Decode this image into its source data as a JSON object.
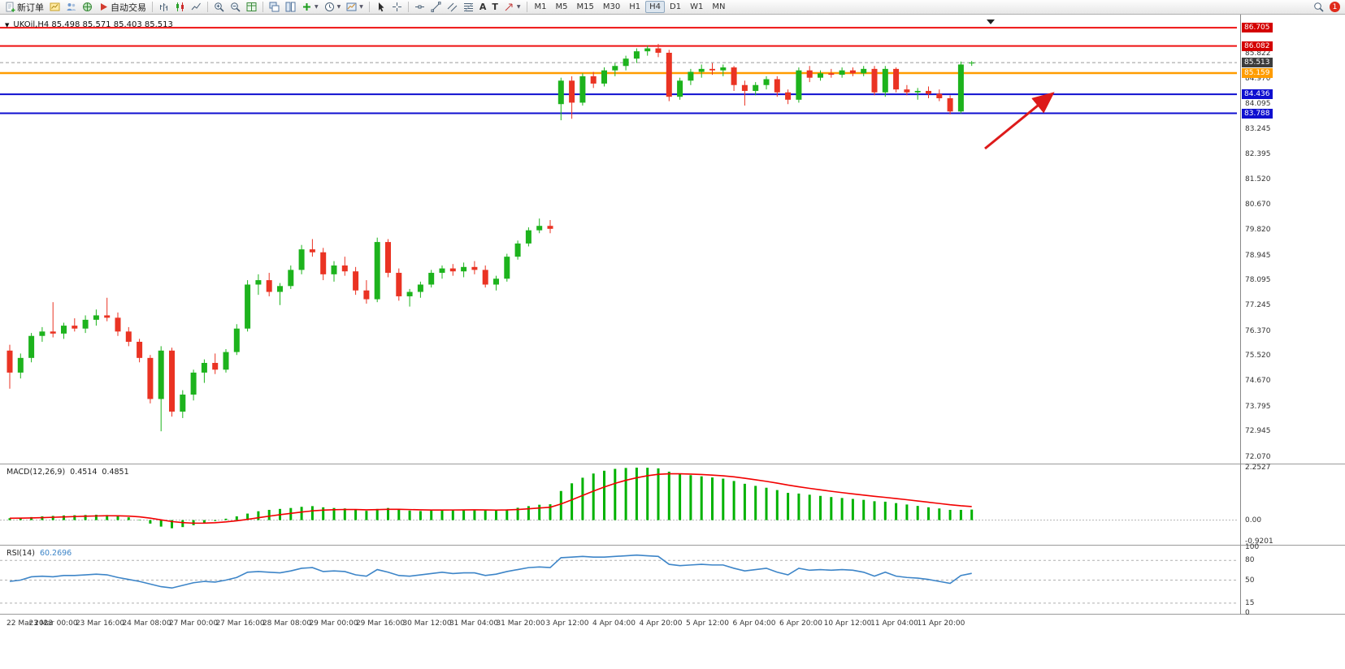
{
  "toolbar": {
    "new_order": "新订单",
    "autotrading": "自动交易",
    "text_tool": "A",
    "label_tool": "T",
    "timeframes": [
      "M1",
      "M5",
      "M15",
      "M30",
      "H1",
      "H4",
      "D1",
      "W1",
      "MN"
    ],
    "active_timeframe": "H4",
    "notification_count": "1"
  },
  "chart": {
    "title": "UKOil,H4 85.498 85.571 85.403 85.513",
    "symbol": "UKOil",
    "period": "H4",
    "ohlc": {
      "open": "85.498",
      "high": "85.571",
      "low": "85.403",
      "close": "85.513"
    }
  },
  "chart_data": {
    "type": "candlestick",
    "symbol": "UKOil",
    "timeframe": "H4",
    "colors": {
      "up": "#1db31d",
      "down": "#ea3323"
    },
    "price_axis_ticks": [
      85.822,
      84.97,
      84.095,
      83.245,
      82.395,
      81.52,
      80.67,
      79.82,
      78.945,
      78.095,
      77.245,
      76.37,
      75.52,
      74.67,
      73.795,
      72.945,
      72.07
    ],
    "price_lines": [
      {
        "price": 86.705,
        "color": "#ee1111",
        "width": 2,
        "tag": true,
        "tag_bg": "#d40000"
      },
      {
        "price": 86.082,
        "color": "#ee1111",
        "width": 2,
        "tag": true,
        "tag_bg": "#d40000"
      },
      {
        "price": 85.513,
        "color": "#9a9a9a",
        "width": 1,
        "dash": "4 3",
        "tag": true,
        "tag_bg": "#3c3c3c",
        "role": "bid"
      },
      {
        "price": 85.159,
        "color": "#ff9c00",
        "width": 2.5,
        "tag": true,
        "tag_bg": "#ff9c00"
      },
      {
        "price": 84.436,
        "color": "#0f0fd0",
        "width": 2,
        "tag": true,
        "tag_bg": "#0f0fd0"
      },
      {
        "price": 83.788,
        "color": "#0f0fd0",
        "width": 2,
        "tag": true,
        "tag_bg": "#0f0fd0"
      }
    ],
    "candles": [
      [
        75.7,
        75.9,
        74.4,
        74.95
      ],
      [
        74.95,
        75.6,
        74.75,
        75.45
      ],
      [
        75.45,
        76.3,
        75.3,
        76.2
      ],
      [
        76.2,
        76.5,
        76.0,
        76.35
      ],
      [
        76.35,
        77.35,
        76.15,
        76.28
      ],
      [
        76.28,
        76.65,
        76.1,
        76.55
      ],
      [
        76.55,
        76.8,
        76.35,
        76.45
      ],
      [
        76.45,
        76.9,
        76.3,
        76.75
      ],
      [
        76.75,
        77.1,
        76.55,
        76.9
      ],
      [
        76.9,
        77.5,
        76.7,
        76.82
      ],
      [
        76.82,
        77.0,
        76.2,
        76.35
      ],
      [
        76.35,
        76.5,
        75.85,
        76.0
      ],
      [
        76.0,
        76.1,
        75.3,
        75.45
      ],
      [
        75.45,
        75.55,
        73.9,
        74.05
      ],
      [
        74.05,
        75.85,
        72.95,
        75.7
      ],
      [
        75.7,
        75.8,
        73.45,
        73.62
      ],
      [
        73.62,
        74.35,
        73.4,
        74.2
      ],
      [
        74.2,
        75.05,
        74.0,
        74.95
      ],
      [
        74.95,
        75.4,
        74.6,
        75.28
      ],
      [
        75.28,
        75.6,
        74.9,
        75.05
      ],
      [
        75.05,
        75.75,
        74.95,
        75.65
      ],
      [
        75.65,
        76.6,
        75.55,
        76.45
      ],
      [
        76.45,
        78.1,
        76.35,
        77.95
      ],
      [
        77.95,
        78.3,
        77.6,
        78.1
      ],
      [
        78.1,
        78.35,
        77.55,
        77.7
      ],
      [
        77.7,
        78.0,
        77.25,
        77.9
      ],
      [
        77.9,
        78.6,
        77.8,
        78.45
      ],
      [
        78.45,
        79.3,
        78.3,
        79.15
      ],
      [
        79.15,
        79.5,
        78.9,
        79.05
      ],
      [
        79.05,
        79.2,
        78.1,
        78.3
      ],
      [
        78.3,
        78.75,
        78.05,
        78.6
      ],
      [
        78.6,
        78.9,
        78.25,
        78.4
      ],
      [
        78.4,
        78.55,
        77.6,
        77.75
      ],
      [
        77.75,
        78.1,
        77.3,
        77.45
      ],
      [
        77.45,
        79.55,
        77.35,
        79.4
      ],
      [
        79.4,
        79.5,
        78.2,
        78.35
      ],
      [
        78.35,
        78.5,
        77.4,
        77.55
      ],
      [
        77.55,
        77.8,
        77.2,
        77.7
      ],
      [
        77.7,
        78.05,
        77.5,
        77.95
      ],
      [
        77.95,
        78.45,
        77.85,
        78.35
      ],
      [
        78.35,
        78.6,
        78.15,
        78.5
      ],
      [
        78.5,
        78.65,
        78.25,
        78.4
      ],
      [
        78.4,
        78.7,
        78.2,
        78.55
      ],
      [
        78.55,
        78.75,
        78.3,
        78.45
      ],
      [
        78.45,
        78.6,
        77.85,
        77.95
      ],
      [
        77.95,
        78.25,
        77.75,
        78.15
      ],
      [
        78.15,
        79.0,
        78.05,
        78.9
      ],
      [
        78.9,
        79.45,
        78.8,
        79.35
      ],
      [
        79.35,
        79.9,
        79.25,
        79.8
      ],
      [
        79.8,
        80.2,
        79.7,
        79.95
      ],
      [
        79.95,
        80.15,
        79.7,
        79.85
      ],
      [
        84.1,
        85.0,
        83.55,
        84.9
      ],
      [
        84.9,
        85.05,
        83.6,
        84.15
      ],
      [
        84.15,
        85.15,
        84.05,
        85.05
      ],
      [
        85.05,
        85.2,
        84.65,
        84.8
      ],
      [
        84.8,
        85.35,
        84.7,
        85.25
      ],
      [
        85.25,
        85.5,
        85.05,
        85.4
      ],
      [
        85.4,
        85.75,
        85.25,
        85.65
      ],
      [
        85.65,
        86.0,
        85.5,
        85.9
      ],
      [
        85.9,
        86.1,
        85.75,
        86.0
      ],
      [
        86.0,
        86.15,
        85.7,
        85.85
      ],
      [
        85.85,
        85.95,
        84.2,
        84.35
      ],
      [
        84.35,
        85.0,
        84.25,
        84.9
      ],
      [
        84.9,
        85.3,
        84.75,
        85.2
      ],
      [
        85.2,
        85.45,
        85.0,
        85.3
      ],
      [
        85.3,
        85.5,
        85.1,
        85.25
      ],
      [
        85.25,
        85.45,
        85.05,
        85.35
      ],
      [
        85.35,
        85.4,
        84.55,
        84.75
      ],
      [
        84.75,
        84.9,
        84.05,
        84.55
      ],
      [
        84.55,
        84.85,
        84.4,
        84.75
      ],
      [
        84.75,
        85.05,
        84.6,
        84.95
      ],
      [
        84.95,
        85.05,
        84.35,
        84.5
      ],
      [
        84.5,
        84.6,
        84.1,
        84.25
      ],
      [
        84.25,
        85.35,
        84.15,
        85.25
      ],
      [
        85.25,
        85.4,
        84.85,
        85.0
      ],
      [
        85.0,
        85.25,
        84.9,
        85.15
      ],
      [
        85.15,
        85.3,
        85.0,
        85.1
      ],
      [
        85.1,
        85.35,
        85.0,
        85.25
      ],
      [
        85.25,
        85.35,
        85.05,
        85.15
      ],
      [
        85.15,
        85.4,
        85.05,
        85.3
      ],
      [
        85.3,
        85.4,
        84.4,
        84.5
      ],
      [
        84.5,
        85.4,
        84.35,
        85.3
      ],
      [
        85.3,
        85.35,
        84.5,
        84.6
      ],
      [
        84.6,
        84.75,
        84.4,
        84.5
      ],
      [
        84.5,
        84.65,
        84.25,
        84.55
      ],
      [
        84.55,
        84.7,
        84.3,
        84.45
      ],
      [
        84.45,
        84.6,
        84.2,
        84.3
      ],
      [
        84.3,
        84.4,
        83.75,
        83.85
      ],
      [
        83.85,
        85.55,
        83.78,
        85.45
      ],
      [
        85.498,
        85.571,
        85.403,
        85.513
      ]
    ],
    "time_labels": [
      "22 Mar 2023",
      "23 Mar 00:00",
      "23 Mar 16:00",
      "24 Mar 08:00",
      "27 Mar 00:00",
      "27 Mar 16:00",
      "28 Mar 08:00",
      "29 Mar 00:00",
      "29 Mar 16:00",
      "30 Mar 12:00",
      "31 Mar 04:00",
      "31 Mar 20:00",
      "3 Apr 12:00",
      "4 Apr 04:00",
      "4 Apr 20:00",
      "5 Apr 12:00",
      "6 Apr 04:00",
      "6 Apr 20:00",
      "10 Apr 12:00",
      "11 Apr 04:00",
      "11 Apr 20:00"
    ],
    "macd": {
      "label": "MACD(12,26,9)",
      "main_value": "0.4514",
      "signal_value": "0.4851",
      "signal_period": 9,
      "colors": {
        "histogram": "#00b200",
        "signal": "#f20000"
      },
      "scale": [
        {
          "label": "2.2527",
          "value": 2.2527
        },
        {
          "label": "0.00",
          "value": 0
        },
        {
          "label": "-0.9201",
          "value": -0.9201
        }
      ],
      "main": [
        0.08,
        0.1,
        0.13,
        0.16,
        0.18,
        0.2,
        0.21,
        0.22,
        0.23,
        0.22,
        0.18,
        0.12,
        0.02,
        -0.15,
        -0.28,
        -0.35,
        -0.3,
        -0.22,
        -0.12,
        -0.04,
        0.06,
        0.16,
        0.28,
        0.38,
        0.44,
        0.48,
        0.52,
        0.57,
        0.6,
        0.55,
        0.52,
        0.5,
        0.44,
        0.4,
        0.48,
        0.52,
        0.46,
        0.41,
        0.39,
        0.41,
        0.43,
        0.44,
        0.45,
        0.45,
        0.42,
        0.41,
        0.46,
        0.53,
        0.6,
        0.66,
        0.68,
        1.25,
        1.58,
        1.82,
        2.0,
        2.12,
        2.2,
        2.24,
        2.2527,
        2.25,
        2.22,
        2.08,
        1.98,
        1.93,
        1.88,
        1.83,
        1.78,
        1.68,
        1.56,
        1.47,
        1.39,
        1.29,
        1.17,
        1.14,
        1.09,
        1.04,
        0.99,
        0.95,
        0.91,
        0.87,
        0.81,
        0.79,
        0.73,
        0.67,
        0.61,
        0.55,
        0.5,
        0.44,
        0.44,
        0.4514
      ]
    },
    "rsi": {
      "label": "RSI(14)",
      "value": "60.2696",
      "color": "#3d85c8",
      "levels": [
        100,
        80,
        50,
        15,
        0
      ],
      "values": [
        48,
        50,
        55,
        56,
        55,
        57,
        57,
        58,
        59,
        58,
        54,
        51,
        48,
        44,
        40,
        38,
        42,
        46,
        48,
        47,
        50,
        54,
        62,
        63,
        62,
        61,
        64,
        68,
        69,
        63,
        64,
        63,
        58,
        56,
        66,
        62,
        57,
        56,
        58,
        60,
        62,
        60,
        61,
        61,
        57,
        59,
        63,
        66,
        69,
        70,
        69,
        84,
        85,
        86,
        85,
        85,
        86,
        87,
        88,
        87,
        86,
        74,
        72,
        73,
        74,
        73,
        73,
        68,
        64,
        66,
        68,
        62,
        58,
        68,
        65,
        66,
        65,
        66,
        65,
        62,
        56,
        62,
        56,
        54,
        53,
        51,
        48,
        45,
        57,
        60.2696
      ]
    },
    "annotation_arrow": {
      "from": [
        1212,
        183
      ],
      "to": [
        1293,
        117
      ],
      "color": "#dd1a1a"
    }
  }
}
